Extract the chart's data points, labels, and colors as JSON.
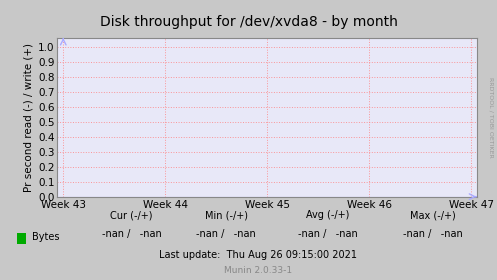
{
  "title": "Disk throughput for /dev/xvda8 - by month",
  "ylabel": "Pr second read (-) / write (+)",
  "yticks": [
    0.0,
    0.1,
    0.2,
    0.3,
    0.4,
    0.5,
    0.6,
    0.7,
    0.8,
    0.9,
    1.0
  ],
  "xtick_labels": [
    "Week 43",
    "Week 44",
    "Week 45",
    "Week 46",
    "Week 47"
  ],
  "xtick_positions": [
    0.0,
    0.25,
    0.5,
    0.75,
    1.0
  ],
  "fig_bg_color": "#c8c8c8",
  "plot_bg_color": "#e8e8f8",
  "grid_color": "#ff8080",
  "title_bg_color": "#c8c8c8",
  "axis_color": "#888888",
  "title_color": "#000000",
  "title_fontsize": 10,
  "ylabel_fontsize": 7.5,
  "tick_fontsize": 7.5,
  "legend_label": "Bytes",
  "legend_color": "#00aa00",
  "cur_label": "Cur (-/+)",
  "min_label": "Min (-/+)",
  "avg_label": "Avg (-/+)",
  "max_label": "Max (-/+)",
  "cur_val": "-nan /   -nan",
  "min_val": "-nan /   -nan",
  "avg_val": "-nan /   -nan",
  "max_val": "-nan /   -nan",
  "last_update": "Last update:  Thu Aug 26 09:15:00 2021",
  "munin_version": "Munin 2.0.33-1",
  "side_label": "RRDTOOL / TOBI OETIKER",
  "arrow_color": "#aaaaff",
  "baseline_color": "#aaaaff",
  "text_color": "#555555"
}
